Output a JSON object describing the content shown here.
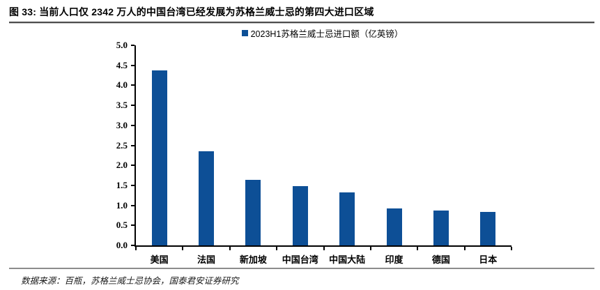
{
  "header": {
    "title": "图 33:  当前人口仅 2342 万人的中国台湾已经发展为苏格兰威士忌的第四大进口区域"
  },
  "chart_data": {
    "type": "bar",
    "title": "",
    "legend": "2023H1苏格兰威士忌进口额（亿英镑）",
    "legend_position": "top-center",
    "categories": [
      "美国",
      "法国",
      "新加坡",
      "中国台湾",
      "中国大陆",
      "印度",
      "德国",
      "日本"
    ],
    "values": [
      4.38,
      2.35,
      1.63,
      1.48,
      1.33,
      0.92,
      0.88,
      0.83
    ],
    "ylabel": "",
    "xlabel": "",
    "ylim": [
      0.0,
      5.0
    ],
    "ytick_labels": [
      "0.0",
      "0.5",
      "1.0",
      "1.5",
      "2.0",
      "2.5",
      "3.0",
      "3.5",
      "4.0",
      "4.5",
      "5.0"
    ],
    "grid": false,
    "bar_color": "#0D4F96"
  },
  "footer": {
    "source": "数据来源：百瓶，苏格兰威士忌协会，国泰君安证券研究"
  }
}
